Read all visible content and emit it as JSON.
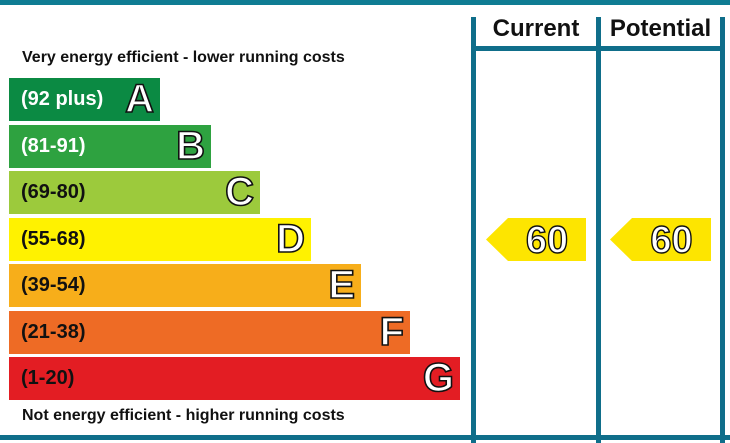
{
  "headers": {
    "current": "Current",
    "potential": "Potential"
  },
  "captions": {
    "top": "Very energy efficient - lower running costs",
    "bottom": "Not energy efficient - higher running costs"
  },
  "colors": {
    "frame": "#0f6e8a",
    "top_bar": "#0f7c93",
    "indicator": "#fde500"
  },
  "chart_data": {
    "type": "bar",
    "categories": [
      "A",
      "B",
      "C",
      "D",
      "E",
      "F",
      "G"
    ],
    "bands": [
      {
        "letter": "A",
        "range": "(92 plus)",
        "color": "#0b8a43",
        "text_color": "#ffffff"
      },
      {
        "letter": "B",
        "range": "(81-91)",
        "color": "#2ea240",
        "text_color": "#ffffff"
      },
      {
        "letter": "C",
        "range": "(69-80)",
        "color": "#9cca3c",
        "text_color": "#111111"
      },
      {
        "letter": "D",
        "range": "(55-68)",
        "color": "#fff200",
        "text_color": "#111111"
      },
      {
        "letter": "E",
        "range": "(39-54)",
        "color": "#f7ae1a",
        "text_color": "#111111"
      },
      {
        "letter": "F",
        "range": "(21-38)",
        "color": "#ee6b25",
        "text_color": "#111111"
      },
      {
        "letter": "G",
        "range": "(1-20)",
        "color": "#e31d23",
        "text_color": "#111111"
      }
    ],
    "current": {
      "value": 60,
      "band": "D"
    },
    "potential": {
      "value": 60,
      "band": "D"
    }
  }
}
